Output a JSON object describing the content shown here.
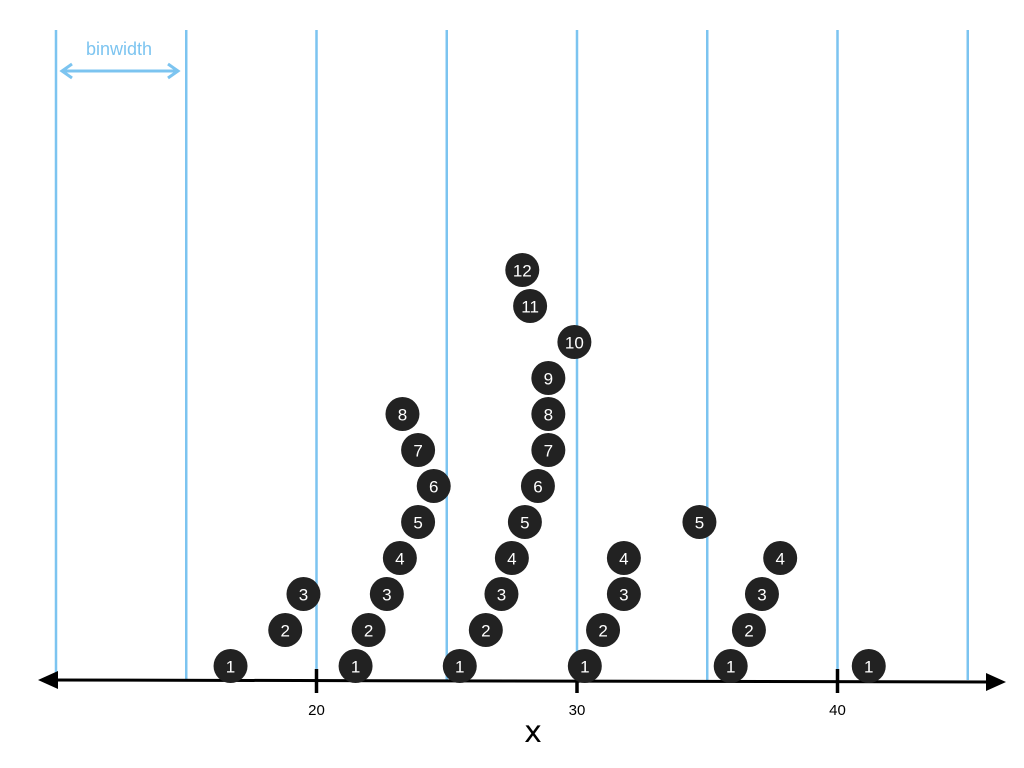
{
  "annotation": {
    "binwidth_label": "binwidth",
    "color": "#7cc4f0"
  },
  "axis": {
    "title": "x",
    "ticks": [
      {
        "value": 20,
        "label": "20"
      },
      {
        "value": 30,
        "label": "30"
      },
      {
        "value": 40,
        "label": "40"
      }
    ]
  },
  "bins": {
    "edges": [
      10,
      15,
      20,
      25,
      30,
      35,
      40,
      45
    ],
    "width": 5
  },
  "colors": {
    "dot_fill": "#222222",
    "dot_text": "#ffffff",
    "bin_line": "#7cc4f0",
    "axis": "#000000"
  },
  "dots": [
    {
      "x": 16.7,
      "stack": 1,
      "label": "1"
    },
    {
      "x": 18.8,
      "stack": 2,
      "label": "2"
    },
    {
      "x": 19.5,
      "stack": 3,
      "label": "3"
    },
    {
      "x": 21.5,
      "stack": 1,
      "label": "1"
    },
    {
      "x": 22.0,
      "stack": 2,
      "label": "2"
    },
    {
      "x": 22.7,
      "stack": 3,
      "label": "3"
    },
    {
      "x": 23.2,
      "stack": 4,
      "label": "4"
    },
    {
      "x": 23.9,
      "stack": 5,
      "label": "5"
    },
    {
      "x": 24.5,
      "stack": 6,
      "label": "6"
    },
    {
      "x": 23.9,
      "stack": 7,
      "label": "7"
    },
    {
      "x": 23.3,
      "stack": 8,
      "label": "8"
    },
    {
      "x": 25.5,
      "stack": 1,
      "label": "1"
    },
    {
      "x": 26.5,
      "stack": 2,
      "label": "2"
    },
    {
      "x": 27.1,
      "stack": 3,
      "label": "3"
    },
    {
      "x": 27.5,
      "stack": 4,
      "label": "4"
    },
    {
      "x": 28.0,
      "stack": 5,
      "label": "5"
    },
    {
      "x": 28.5,
      "stack": 6,
      "label": "6"
    },
    {
      "x": 28.9,
      "stack": 7,
      "label": "7"
    },
    {
      "x": 28.9,
      "stack": 8,
      "label": "8"
    },
    {
      "x": 28.9,
      "stack": 9,
      "label": "9"
    },
    {
      "x": 29.9,
      "stack": 10,
      "label": "10"
    },
    {
      "x": 28.2,
      "stack": 11,
      "label": "11"
    },
    {
      "x": 27.9,
      "stack": 12,
      "label": "12"
    },
    {
      "x": 30.3,
      "stack": 1,
      "label": "1"
    },
    {
      "x": 31.0,
      "stack": 2,
      "label": "2"
    },
    {
      "x": 31.8,
      "stack": 3,
      "label": "3"
    },
    {
      "x": 31.8,
      "stack": 4,
      "label": "4"
    },
    {
      "x": 34.7,
      "stack": 5,
      "label": "5"
    },
    {
      "x": 35.9,
      "stack": 1,
      "label": "1"
    },
    {
      "x": 36.6,
      "stack": 2,
      "label": "2"
    },
    {
      "x": 37.1,
      "stack": 3,
      "label": "3"
    },
    {
      "x": 37.8,
      "stack": 4,
      "label": "4"
    },
    {
      "x": 41.2,
      "stack": 1,
      "label": "1"
    }
  ]
}
